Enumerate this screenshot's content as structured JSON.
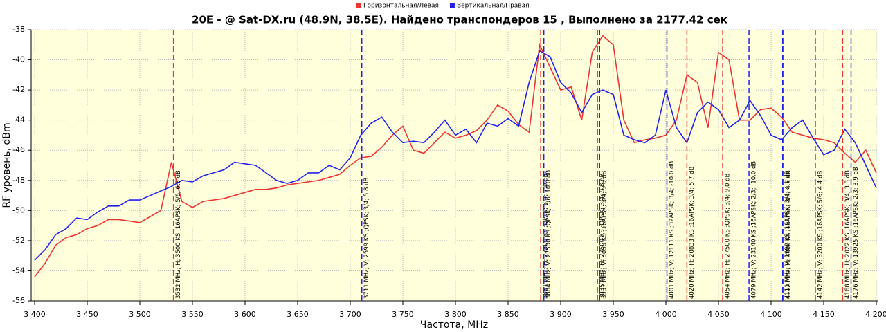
{
  "chart_data": {
    "type": "line",
    "title": "20E -  @ Sat-DX.ru (48.9N, 38.5E). Найдено транспондеров 15 , Выполнено за 2177.42 сек",
    "xlabel": "Частота, MHz",
    "ylabel": "RF уровень, dBm",
    "xlim": [
      3400,
      4200
    ],
    "ylim": [
      -56,
      -38
    ],
    "xticks": [
      {
        "value": 3400,
        "label": "3 400"
      },
      {
        "value": 3450,
        "label": "3 450"
      },
      {
        "value": 3500,
        "label": "3 500"
      },
      {
        "value": 3550,
        "label": "3 550"
      },
      {
        "value": 3600,
        "label": "3 600"
      },
      {
        "value": 3650,
        "label": "3 650"
      },
      {
        "value": 3700,
        "label": "3 700"
      },
      {
        "value": 3750,
        "label": "3 750"
      },
      {
        "value": 3800,
        "label": "3 800"
      },
      {
        "value": 3850,
        "label": "3 850"
      },
      {
        "value": 3900,
        "label": "3 900"
      },
      {
        "value": 3950,
        "label": "3 950"
      },
      {
        "value": 4000,
        "label": "4 000"
      },
      {
        "value": 4050,
        "label": "4 050"
      },
      {
        "value": 4100,
        "label": "4 100"
      },
      {
        "value": 4150,
        "label": "4 150"
      },
      {
        "value": 4200,
        "label": "4 200"
      }
    ],
    "yticks": [
      -38,
      -40,
      -42,
      -44,
      -46,
      -48,
      -50,
      -52,
      -54,
      -56
    ],
    "grid": true,
    "legend": "top",
    "x": [
      3400,
      3410,
      3420,
      3430,
      3440,
      3450,
      3460,
      3470,
      3480,
      3490,
      3500,
      3510,
      3520,
      3530,
      3540,
      3550,
      3560,
      3570,
      3580,
      3590,
      3600,
      3610,
      3620,
      3630,
      3640,
      3650,
      3660,
      3670,
      3680,
      3690,
      3700,
      3710,
      3720,
      3730,
      3740,
      3750,
      3760,
      3770,
      3780,
      3790,
      3800,
      3810,
      3820,
      3830,
      3840,
      3850,
      3860,
      3870,
      3880,
      3890,
      3900,
      3910,
      3920,
      3930,
      3940,
      3950,
      3960,
      3970,
      3980,
      3990,
      4000,
      4010,
      4020,
      4030,
      4040,
      4050,
      4060,
      4070,
      4080,
      4090,
      4100,
      4110,
      4120,
      4130,
      4140,
      4150,
      4160,
      4170,
      4180,
      4190,
      4200
    ],
    "series": [
      {
        "name": "Горизонтальная/Левая",
        "color": "#ee3333",
        "values": [
          -54.4,
          -53.5,
          -52.3,
          -51.8,
          -51.6,
          -51.2,
          -51.0,
          -50.6,
          -50.6,
          -50.7,
          -50.8,
          -50.4,
          -50.0,
          -46.8,
          -49.4,
          -49.8,
          -49.4,
          -49.3,
          -49.2,
          -49.0,
          -48.8,
          -48.6,
          -48.6,
          -48.5,
          -48.3,
          -48.2,
          -48.1,
          -48.0,
          -47.8,
          -47.6,
          -47.0,
          -46.5,
          -46.4,
          -45.8,
          -45.0,
          -44.4,
          -46.0,
          -46.2,
          -45.5,
          -44.8,
          -45.2,
          -45.0,
          -44.7,
          -44.0,
          -43.0,
          -43.4,
          -44.3,
          -44.8,
          -39.0,
          -40.5,
          -42.0,
          -41.8,
          -44.0,
          -39.5,
          -38.4,
          -39.0,
          -44.0,
          -45.5,
          -45.3,
          -45.2,
          -45.0,
          -44.0,
          -41.0,
          -41.5,
          -44.5,
          -39.5,
          -40.0,
          -44.0,
          -44.0,
          -43.3,
          -43.2,
          -43.8,
          -44.8,
          -45.0,
          -45.2,
          -45.3,
          -45.5,
          -46.2,
          -46.8,
          -46.0,
          -47.5
        ]
      },
      {
        "name": "Вертикальная/Правая",
        "color": "#2222ee",
        "values": [
          -53.3,
          -52.6,
          -51.6,
          -51.2,
          -50.5,
          -50.6,
          -50.1,
          -49.7,
          -49.7,
          -49.3,
          -49.3,
          -49.0,
          -48.7,
          -48.4,
          -48.0,
          -48.1,
          -47.7,
          -47.5,
          -47.3,
          -46.8,
          -46.9,
          -47.0,
          -47.5,
          -48.0,
          -48.2,
          -48.0,
          -47.5,
          -47.5,
          -47.0,
          -47.3,
          -46.5,
          -45.0,
          -44.2,
          -43.8,
          -44.8,
          -45.5,
          -45.4,
          -45.5,
          -44.8,
          -44.0,
          -45.0,
          -44.6,
          -45.5,
          -44.2,
          -44.4,
          -43.9,
          -44.4,
          -41.5,
          -39.4,
          -39.8,
          -41.5,
          -42.2,
          -43.5,
          -42.3,
          -42.0,
          -42.3,
          -45.0,
          -45.3,
          -45.5,
          -45.0,
          -42.0,
          -44.5,
          -45.5,
          -43.5,
          -42.8,
          -43.3,
          -44.5,
          -44.0,
          -42.7,
          -43.7,
          -45.0,
          -45.3,
          -44.5,
          -44.0,
          -45.2,
          -46.3,
          -46.0,
          -44.6,
          -45.5,
          -47.0,
          -48.5
        ]
      }
    ],
    "markers": [
      {
        "freq": 3532,
        "color": "#ee3333",
        "label": "3532 MHz; H; 3500 KS ;16APSK; 5/6; 6.8 dB"
      },
      {
        "freq": 3711,
        "color": "#2222ee",
        "label": "3711 MHz; V; 2599 KS ;QPSK; 3/4; 5.8 dB"
      },
      {
        "freq": 3881,
        "color": "#ee3333",
        "label": "3881 MHz; H; 27500 KS ;QPSK; 3/4; 7.0 dB"
      },
      {
        "freq": 3884,
        "color": "#2222ee",
        "label": "3884 MHz; V; 27500 KS ;QPSK; 5/6; 10.0 dB"
      },
      {
        "freq": 3935,
        "color": "#ee3333",
        "label": "3935 MHz; H; 27500 KS ;QPSK; 3/4; 9.8 dB"
      },
      {
        "freq": 3937,
        "color": "#2222ee",
        "label": "3937 MHz; V; 3050 KS ;16APSK; 3/4; 9.8 dB"
      },
      {
        "freq": 4001,
        "color": "#2222ee",
        "label": "4001 MHz; V; 12111 KS ;32APSK; 3/4; -10.0 dB"
      },
      {
        "freq": 4020,
        "color": "#ee3333",
        "label": "4020 MHz; H; 20833 KS ;16APSK; 3/4; 5.7 dB"
      },
      {
        "freq": 4054,
        "color": "#ee3333",
        "label": "4054 MHz; H; 27500 KS ;QPSK; 3/4; 9.0 dB"
      },
      {
        "freq": 4079,
        "color": "#2222ee",
        "label": "4079 MHz; V; 23140 KS ;16APSK; 2/3; -10.0 dB"
      },
      {
        "freq": 4111,
        "color": "#2222ee",
        "label": "4111 MHz; V; 1999 KS ;16APSK; 3/4; 4.1 dB"
      },
      {
        "freq": 4112,
        "color": "#ee3333",
        "label": "4112 MHz; H; 3000 KS ;16APSK; 3/4; 4.5 dB"
      },
      {
        "freq": 4142,
        "color": "#2222ee",
        "label": "4142 MHz; V; 3200 KS ;16APSK; 5/6; 4.4 dB"
      },
      {
        "freq": 4168,
        "color": "#ee3333",
        "label": "4168 MHz; H; 2022 KS ;16APSK; 3/4; 3.3 dB"
      },
      {
        "freq": 4176,
        "color": "#2222ee",
        "label": "4176 MHz; V; 13925 KS ;16APSK; 2/3; 3.9 dB"
      }
    ]
  }
}
